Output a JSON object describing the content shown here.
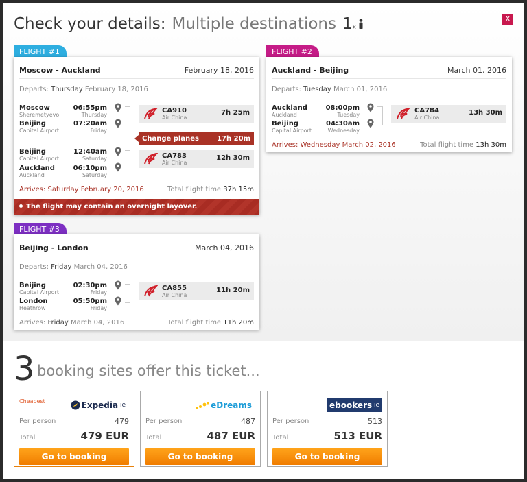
{
  "header": {
    "title": "Check your details:",
    "subtitle": "Multiple destinations",
    "passengers": "1",
    "passengers_x": "x"
  },
  "close_label": "X",
  "flights": [
    {
      "tab": "FLIGHT #1",
      "route": "Moscow - Auckland",
      "date": "February 18, 2016",
      "departs_label": "Departs:",
      "departs_day": "Thursday",
      "departs_date": "February 18, 2016",
      "legs": [
        {
          "from_city": "Moscow",
          "from_airport": "Sheremetyevo",
          "from_time": "06:55pm",
          "from_day": "Thursday",
          "to_city": "Beijing",
          "to_airport": "Capital Airport",
          "to_time": "07:20am",
          "to_day": "Friday",
          "flight": "CA910",
          "airline": "Air China",
          "duration": "7h 25m"
        },
        {
          "from_city": "Beijing",
          "from_airport": "Capital Airport",
          "from_time": "12:40am",
          "from_day": "Saturday",
          "to_city": "Auckland",
          "to_airport": "Auckland",
          "to_time": "06:10pm",
          "to_day": "Saturday",
          "flight": "CA783",
          "airline": "Air China",
          "duration": "12h 30m"
        }
      ],
      "change_label": "Change planes",
      "change_duration": "17h 20m",
      "arrives": "Arrives: Saturday February 20, 2016",
      "total_label": "Total flight time",
      "total": "37h 15m",
      "warning": "The flight may contain an overnight layover."
    },
    {
      "tab": "FLIGHT #2",
      "route": "Auckland - Beijing",
      "date": "March 01, 2016",
      "departs_label": "Departs:",
      "departs_day": "Tuesday",
      "departs_date": "March 01, 2016",
      "legs": [
        {
          "from_city": "Auckland",
          "from_airport": "Auckland",
          "from_time": "08:00pm",
          "from_day": "Tuesday",
          "to_city": "Beijing",
          "to_airport": "Capital Airport",
          "to_time": "04:30am",
          "to_day": "Wednesday",
          "flight": "CA784",
          "airline": "Air China",
          "duration": "13h 30m"
        }
      ],
      "arrives": "Arrives: Wednesday March 02, 2016",
      "total_label": "Total flight time",
      "total": "13h 30m"
    },
    {
      "tab": "FLIGHT #3",
      "route": "Beijing - London",
      "date": "March 04, 2016",
      "departs_label": "Departs:",
      "departs_day": "Friday",
      "departs_date": "March 04, 2016",
      "legs": [
        {
          "from_city": "Beijing",
          "from_airport": "Capital Airport",
          "from_time": "02:30pm",
          "from_day": "Friday",
          "to_city": "London",
          "to_airport": "Heathrow",
          "to_time": "05:50pm",
          "to_day": "Friday",
          "flight": "CA855",
          "airline": "Air China",
          "duration": "11h 20m"
        }
      ],
      "arrives_label": "Arrives:",
      "arrives_day": "Friday",
      "arrives_date": "March 04, 2016",
      "total_label": "Total flight time",
      "total": "11h 20m"
    }
  ],
  "booking": {
    "count": "3",
    "headline": "booking sites offer this ticket...",
    "sites": [
      {
        "name": "Expedia",
        "suffix": ".ie",
        "tag": "Cheapest",
        "per_person_label": "Per person",
        "per_person": "479",
        "total_label": "Total",
        "total": "479 EUR",
        "button": "Go to booking"
      },
      {
        "name": "eDreams",
        "per_person_label": "Per person",
        "per_person": "487",
        "total_label": "Total",
        "total": "487 EUR",
        "button": "Go to booking"
      },
      {
        "name": "ebookers",
        "suffix": ".ie",
        "per_person_label": "Per person",
        "per_person": "513",
        "total_label": "Total",
        "total": "513 EUR",
        "button": "Go to booking"
      }
    ]
  },
  "colors": {
    "accent_close": "#c8184e",
    "flight1_tab": "#2eaee0",
    "flight2_tab": "#c51c87",
    "flight3_tab": "#7d2fc2",
    "alert": "#a93226",
    "button": "#f28c0f"
  },
  "icons": [
    "person-icon",
    "location-pin-icon",
    "air-china-logo-icon",
    "alert-dot-icon"
  ]
}
